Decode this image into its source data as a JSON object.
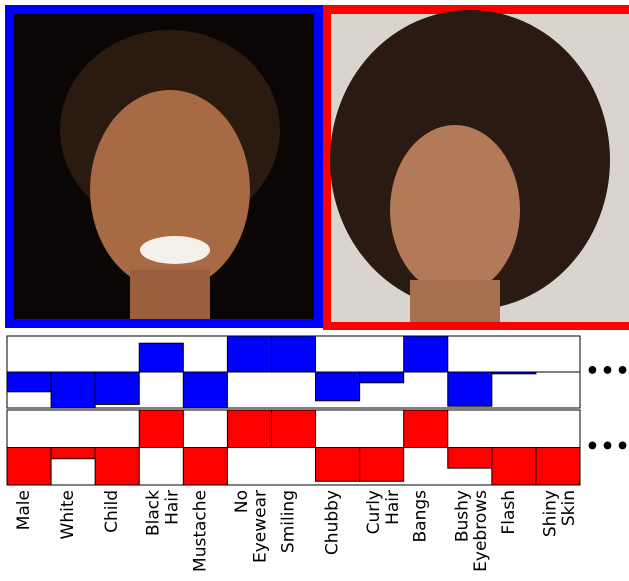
{
  "chart_data": {
    "type": "bar",
    "categories": [
      "Male",
      "White",
      "Child",
      "Black\nHair",
      "Mustache",
      "No\nEyewear",
      "Smiling",
      "Chubby",
      "Curly\nHair",
      "Bangs",
      "Bushy\nEyebrows",
      "Flash",
      "Shiny\nSkin"
    ],
    "series": [
      {
        "color": "#0000ff",
        "values": [
          -0.55,
          -1,
          -0.9,
          0.8,
          -1,
          1,
          1,
          -0.8,
          -0.3,
          1,
          -0.95,
          -0.05,
          0
        ]
      },
      {
        "color": "#ff0000",
        "values": [
          -1,
          -0.3,
          -1,
          1,
          -1,
          1,
          1,
          -0.9,
          -0.9,
          1,
          -0.55,
          -1,
          -1
        ]
      }
    ],
    "ylim": [
      -1,
      1
    ],
    "continuation": "•••"
  }
}
